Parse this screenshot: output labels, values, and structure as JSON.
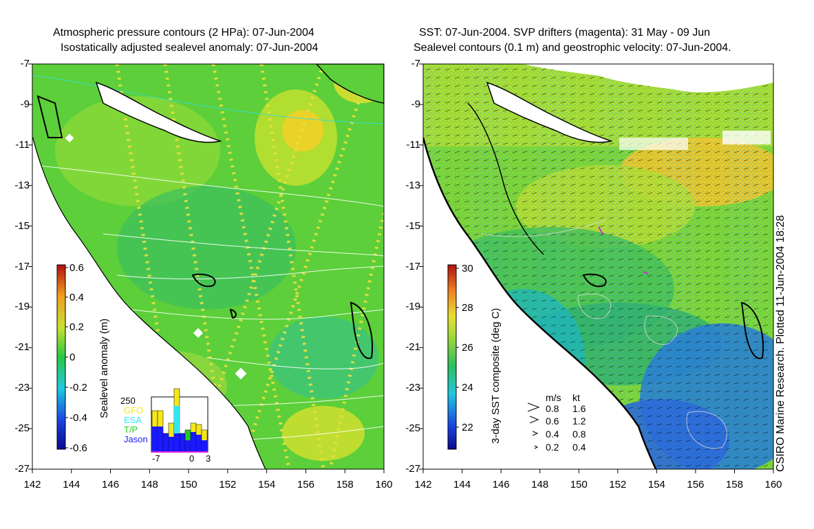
{
  "left_panel": {
    "title_line1": "Atmospheric pressure contours (2 HPa): 07-Jun-2004",
    "title_line2": "Isostatically adjusted sealevel anomaly: 07-Jun-2004",
    "colorbar": {
      "label": "Sealevel anomaly (m)",
      "ticks": [
        "0.6",
        "0.4",
        "0.2",
        "0",
        "-0.2",
        "-0.4",
        "-0.6"
      ],
      "range": [
        -0.6,
        0.6
      ]
    },
    "inset": {
      "ymax_label": "250",
      "legend": [
        {
          "name": "GFO",
          "color": "#f5e61a"
        },
        {
          "name": "ESA",
          "color": "#33e6f0"
        },
        {
          "name": "T/P",
          "color": "#22cc22"
        },
        {
          "name": "Jason",
          "color": "#1a1aff"
        }
      ],
      "x_ticks": [
        "-7",
        "0",
        "3"
      ]
    }
  },
  "right_panel": {
    "title_line1": "SST: 07-Jun-2004. SVP drifters (magenta): 31 May - 09 Jun",
    "title_line2": "Sealevel contours (0.1 m) and geostrophic velocity: 07-Jun-2004.",
    "colorbar": {
      "label": "3-day SST composite (deg C)",
      "ticks": [
        "30",
        "28",
        "26",
        "24",
        "22"
      ],
      "range": [
        21,
        30
      ]
    },
    "velocity_legend": {
      "header_ms": "m/s",
      "header_kt": "kt",
      "rows": [
        {
          "ms": "0.8",
          "kt": "1.6"
        },
        {
          "ms": "0.6",
          "kt": "1.2"
        },
        {
          "ms": "0.4",
          "kt": "0.8"
        },
        {
          "ms": "0.2",
          "kt": "0.4"
        }
      ]
    },
    "credit": "CSIRO Marine Research. Plotted 11-Jun-2004 18:28"
  },
  "axes": {
    "lat_ticks": [
      "-7",
      "-9",
      "-11",
      "-13",
      "-15",
      "-17",
      "-19",
      "-21",
      "-23",
      "-25",
      "-27"
    ],
    "lon_ticks": [
      "142",
      "144",
      "146",
      "148",
      "150",
      "152",
      "154",
      "156",
      "158",
      "160"
    ]
  },
  "colors": {
    "ocean_green": "#4fcf3a",
    "coast": "#000000",
    "land": "#ffffff"
  }
}
